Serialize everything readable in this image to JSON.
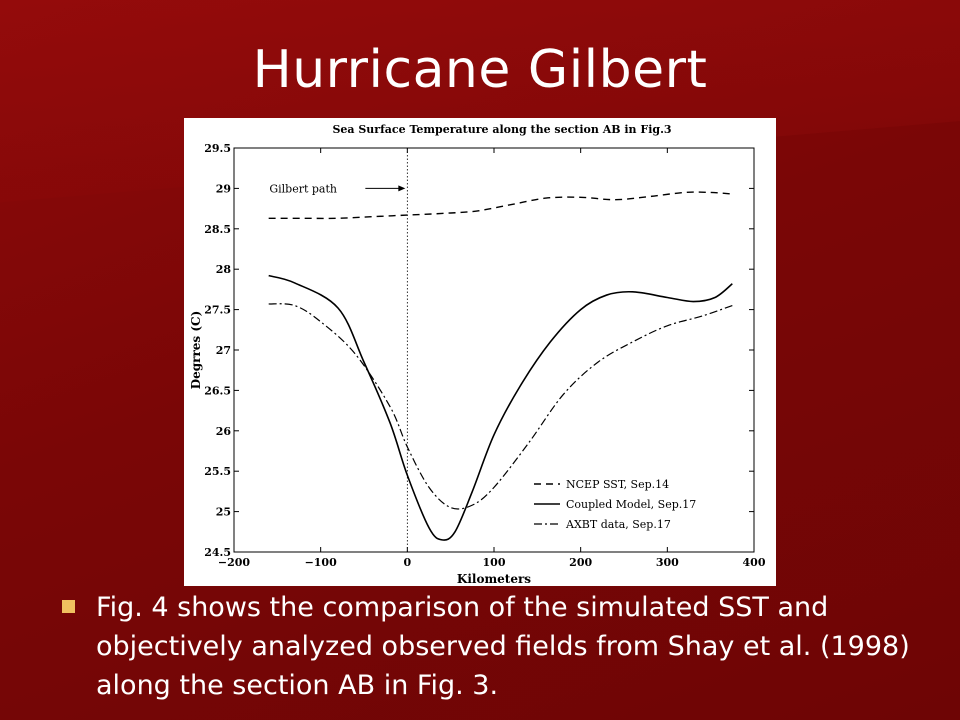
{
  "slide": {
    "title": "Hurricane Gilbert",
    "caption": "Fig. 4 shows the comparison of the simulated SST and objectively analyzed observed fields from Shay et al. (1998) along the section AB in Fig. 3.",
    "colors": {
      "background": "#7a0606",
      "bullet": "#f0c060",
      "text": "#ffffff"
    }
  },
  "chart_data": {
    "type": "line",
    "title": "Sea Surface Temperature along the section AB in Fig.3",
    "xlabel": "Kilometers",
    "ylabel": "Degrres (C)",
    "xlim": [
      -200,
      400
    ],
    "ylim": [
      24.5,
      29.5
    ],
    "xticks": [
      "−200",
      "−100",
      "0",
      "100",
      "200",
      "300",
      "400"
    ],
    "xtick_values": [
      -200,
      -100,
      0,
      100,
      200,
      300,
      400
    ],
    "yticks": [
      "24.5",
      "25",
      "25.5",
      "26",
      "26.5",
      "27",
      "27.5",
      "28",
      "28.5",
      "29",
      "29.5"
    ],
    "ytick_values": [
      24.5,
      25,
      25.5,
      26,
      26.5,
      27,
      27.5,
      28,
      28.5,
      29,
      29.5
    ],
    "annotation": {
      "text": "Gilbert path",
      "x": 0
    },
    "legend_position": "bottom-right",
    "series": [
      {
        "name": "NCEP SST, Sep.14",
        "style": "dashed",
        "x": [
          -160,
          -120,
          -80,
          -40,
          0,
          40,
          80,
          120,
          160,
          200,
          240,
          280,
          320,
          350,
          375
        ],
        "y": [
          28.63,
          28.63,
          28.63,
          28.65,
          28.67,
          28.69,
          28.72,
          28.8,
          28.88,
          28.89,
          28.86,
          28.9,
          28.95,
          28.95,
          28.93
        ]
      },
      {
        "name": "Coupled Model, Sep.17",
        "style": "solid",
        "x": [
          -160,
          -130,
          -80,
          -50,
          -20,
          0,
          25,
          40,
          55,
          75,
          100,
          130,
          165,
          200,
          230,
          260,
          300,
          330,
          355,
          375
        ],
        "y": [
          27.92,
          27.83,
          27.52,
          26.85,
          26.1,
          25.45,
          24.8,
          24.65,
          24.75,
          25.25,
          25.95,
          26.55,
          27.1,
          27.5,
          27.68,
          27.72,
          27.65,
          27.6,
          27.65,
          27.82
        ]
      },
      {
        "name": "AXBT data, Sep.17",
        "style": "dashdot",
        "x": [
          -160,
          -130,
          -100,
          -60,
          -20,
          0,
          25,
          50,
          75,
          100,
          140,
          180,
          220,
          260,
          300,
          340,
          375
        ],
        "y": [
          27.57,
          27.55,
          27.35,
          26.95,
          26.3,
          25.8,
          25.3,
          25.05,
          25.08,
          25.3,
          25.85,
          26.45,
          26.85,
          27.1,
          27.3,
          27.42,
          27.55
        ]
      }
    ]
  }
}
